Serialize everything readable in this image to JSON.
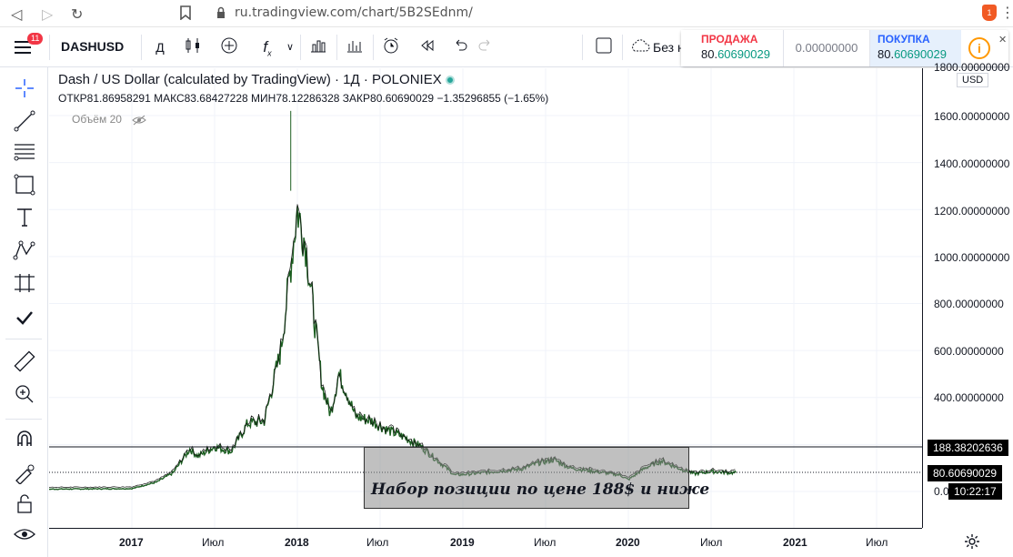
{
  "browser": {
    "url": "ru.tradingview.com/chart/5B2SEdnm/",
    "brave_count": "1"
  },
  "toolbar": {
    "symbol": "DASHUSD",
    "badge": "11",
    "interval": "Д",
    "compare_label": "Без н"
  },
  "trade": {
    "sell_label": "ПРОДАЖА",
    "sell_price_prefix": "80.",
    "sell_price_hl": "60690029",
    "mid_value": "0.00000000",
    "buy_label": "ПОКУПКА",
    "buy_price_prefix": "80.",
    "buy_price_hl": "60690029"
  },
  "legend": {
    "title": "Dash / US Dollar (calculated by TradingView) · 1Д · POLONIEX",
    "open_label": "ОТКР",
    "open": "81.86958291",
    "high_label": "МАКС",
    "high": "83.68427228",
    "low_label": "МИН",
    "low": "78.12286328",
    "close_label": "ЗАКР",
    "close": "80.60690029",
    "change": "−1.35296855 (−1.65%)",
    "volume": "Объём 20"
  },
  "price_axis": {
    "currency": "USD",
    "labels": [
      "1800.00000000",
      "1600.00000000",
      "1400.00000000",
      "1200.00000000",
      "1000.00000000",
      "800.00000000",
      "600.00000000",
      "400.00000000",
      "0.00000000"
    ],
    "line_tag": "188.38202636",
    "price_tag": "80.60690029",
    "time_tag": "10:22:17"
  },
  "time_axis": {
    "labels": [
      "2017",
      "Июл",
      "2018",
      "Июл",
      "2019",
      "Июл",
      "2020",
      "Июл",
      "2021",
      "Июл"
    ]
  },
  "annotation": {
    "text": "Набор позиции по цене 188$ и ниже"
  },
  "colors": {
    "line": "#1b5e20",
    "sell": "#f23645",
    "buy": "#2962ff"
  },
  "chart_data": {
    "type": "line",
    "title": "Dash / US Dollar (calculated by TradingView) · 1Д · POLONIEX",
    "xlabel": "",
    "ylabel": "",
    "ylim": [
      0,
      1800
    ],
    "x": [
      2016.25,
      2016.5,
      2016.75,
      2017.0,
      2017.15,
      2017.25,
      2017.35,
      2017.4,
      2017.5,
      2017.6,
      2017.7,
      2017.8,
      2017.9,
      2017.95,
      2018.0,
      2018.05,
      2018.1,
      2018.15,
      2018.2,
      2018.25,
      2018.3,
      2018.35,
      2018.45,
      2018.55,
      2018.65,
      2018.75,
      2018.85,
      2018.95,
      2019.05,
      2019.2,
      2019.35,
      2019.45,
      2019.55,
      2019.65,
      2019.8,
      2019.95,
      2020.0,
      2020.1,
      2020.2,
      2020.3,
      2020.4,
      2020.5,
      2020.6,
      2020.65
    ],
    "y": [
      10,
      10,
      11,
      12,
      40,
      80,
      180,
      150,
      190,
      170,
      290,
      300,
      600,
      900,
      1200,
      1050,
      750,
      450,
      330,
      500,
      420,
      320,
      300,
      260,
      230,
      190,
      130,
      70,
      75,
      85,
      95,
      120,
      135,
      100,
      85,
      70,
      50,
      100,
      130,
      100,
      75,
      85,
      80,
      80
    ],
    "horizontal_line": 188.38,
    "grid": true
  }
}
